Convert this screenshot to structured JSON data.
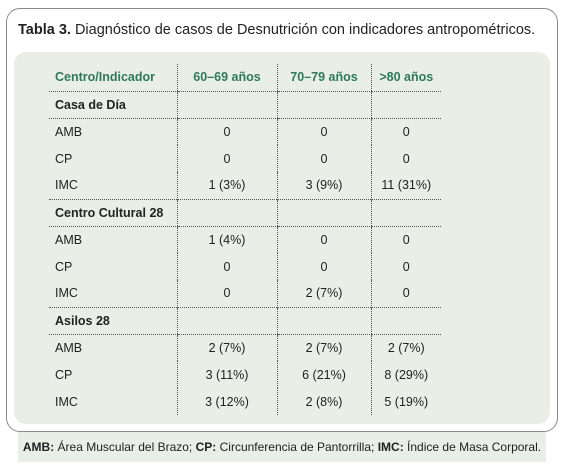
{
  "caption": {
    "label": "Tabla 3.",
    "text": " Diagnóstico de casos de Desnutrición con indicadores antropométricos."
  },
  "table": {
    "headers": [
      "Centro/Indicador",
      "60–69 años",
      "70–79 años",
      ">80 años"
    ],
    "groups": [
      {
        "name": "Casa de Día",
        "rows": [
          {
            "indicator": "AMB",
            "v1": "0",
            "v2": "0",
            "v3": "0"
          },
          {
            "indicator": "CP",
            "v1": "0",
            "v2": "0",
            "v3": "0"
          },
          {
            "indicator": "IMC",
            "v1": "1 (3%)",
            "v2": "3 (9%)",
            "v3": "11 (31%)"
          }
        ]
      },
      {
        "name": "Centro Cultural 28",
        "rows": [
          {
            "indicator": "AMB",
            "v1": "1 (4%)",
            "v2": "0",
            "v3": "0"
          },
          {
            "indicator": "CP",
            "v1": "0",
            "v2": "0",
            "v3": "0"
          },
          {
            "indicator": "IMC",
            "v1": "0",
            "v2": "2 (7%)",
            "v3": "0"
          }
        ]
      },
      {
        "name": "Asilos 28",
        "rows": [
          {
            "indicator": "AMB",
            "v1": "2 (7%)",
            "v2": "2 (7%)",
            "v3": "2 (7%)"
          },
          {
            "indicator": "CP",
            "v1": "3 (11%)",
            "v2": "6 (21%)",
            "v3": "8 (29%)"
          },
          {
            "indicator": "IMC",
            "v1": "3 (12%)",
            "v2": "2 (8%)",
            "v3": "5 (19%)"
          }
        ]
      }
    ]
  },
  "footer": {
    "items": [
      {
        "abbr": "AMB:",
        "text": " Área Muscular del Brazo; "
      },
      {
        "abbr": "CP:",
        "text": " Circunferencia de Pantorrilla; "
      },
      {
        "abbr": "IMC:",
        "text": " Índice de Masa Corporal."
      }
    ]
  }
}
